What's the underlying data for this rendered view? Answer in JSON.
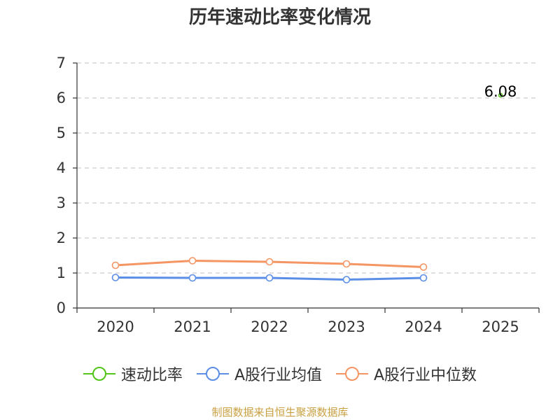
{
  "chart_data": {
    "type": "line",
    "title": "历年速动比率变化情况",
    "categories": [
      "2020",
      "2021",
      "2022",
      "2023",
      "2024",
      "2025"
    ],
    "ylim": [
      0,
      7
    ],
    "yticks": [
      0,
      1,
      2,
      3,
      4,
      5,
      6,
      7
    ],
    "ytick_labels": [
      "0",
      "1",
      "2",
      "3",
      "4",
      "5",
      "6",
      "7"
    ],
    "grid": true,
    "legend_position": "bottom",
    "series": [
      {
        "name": "速动比率",
        "color": "#52c41a",
        "values": [
          null,
          null,
          null,
          null,
          null,
          6.08
        ]
      },
      {
        "name": "A股行业均值",
        "color": "#5b8ee6",
        "values": [
          0.87,
          0.86,
          0.86,
          0.81,
          0.86,
          null
        ]
      },
      {
        "name": "A股行业中位数",
        "color": "#f59563",
        "values": [
          1.22,
          1.35,
          1.32,
          1.26,
          1.17,
          null
        ]
      }
    ],
    "data_labels": [
      {
        "series": 0,
        "index": 5,
        "text": "6.08"
      }
    ]
  },
  "source_note": {
    "text": "制图数据来自恒生聚源数据库",
    "color": "#c8a040"
  },
  "colors": {
    "axis": "#333333",
    "grid": "#cccccc"
  }
}
